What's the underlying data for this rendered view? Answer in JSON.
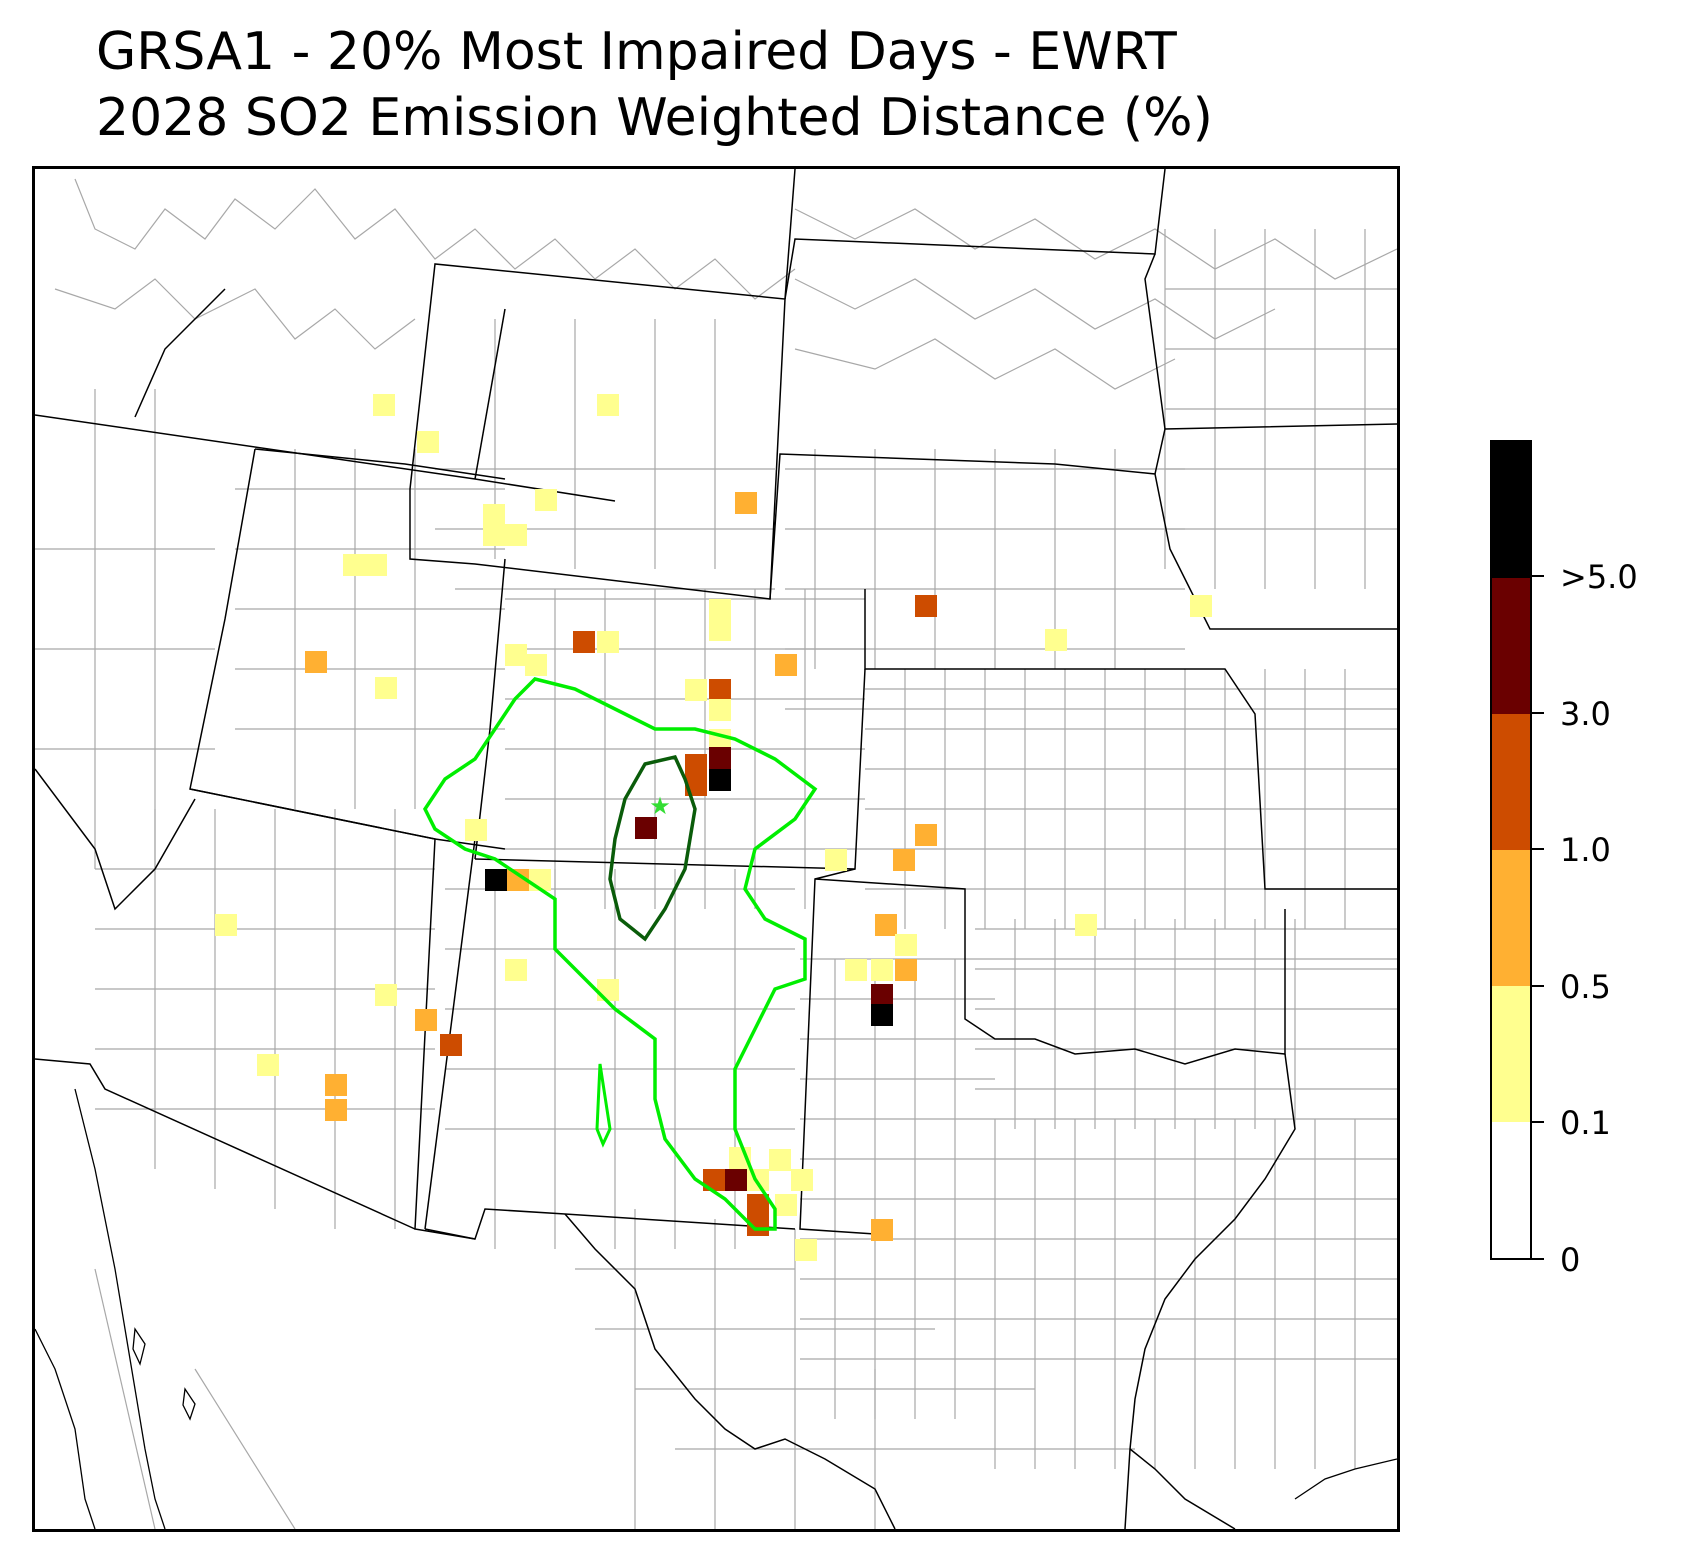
{
  "title": {
    "line1": "GRSA1 - 20% Most Impaired Days - EWRT",
    "line2": "2028 SO2 Emission Weighted Distance (%)"
  },
  "map": {
    "features": [
      "state-boundaries",
      "county-boundaries",
      "coastline",
      "receptor-star",
      "inner-contour",
      "outer-contour"
    ],
    "receptor_color": "#33dd33",
    "inner_contour_color": "#0a5c0a",
    "outer_contour_color": "#00ee00"
  },
  "colorbar": {
    "tick_labels": [
      "0",
      "0.1",
      "0.5",
      "1.0",
      "3.0",
      ">5.0"
    ],
    "bins": [
      {
        "range": "0-0.1",
        "color": "#ffffff"
      },
      {
        "range": "0.1-0.5",
        "color": "#ffff8f"
      },
      {
        "range": "0.5-1.0",
        "color": "#ffb032"
      },
      {
        "range": "1.0-3.0",
        "color": "#cd4c00"
      },
      {
        "range": "3.0-5.0",
        "color": "#6a0000"
      },
      {
        "range": ">5.0",
        "color": "#000000"
      }
    ]
  }
}
